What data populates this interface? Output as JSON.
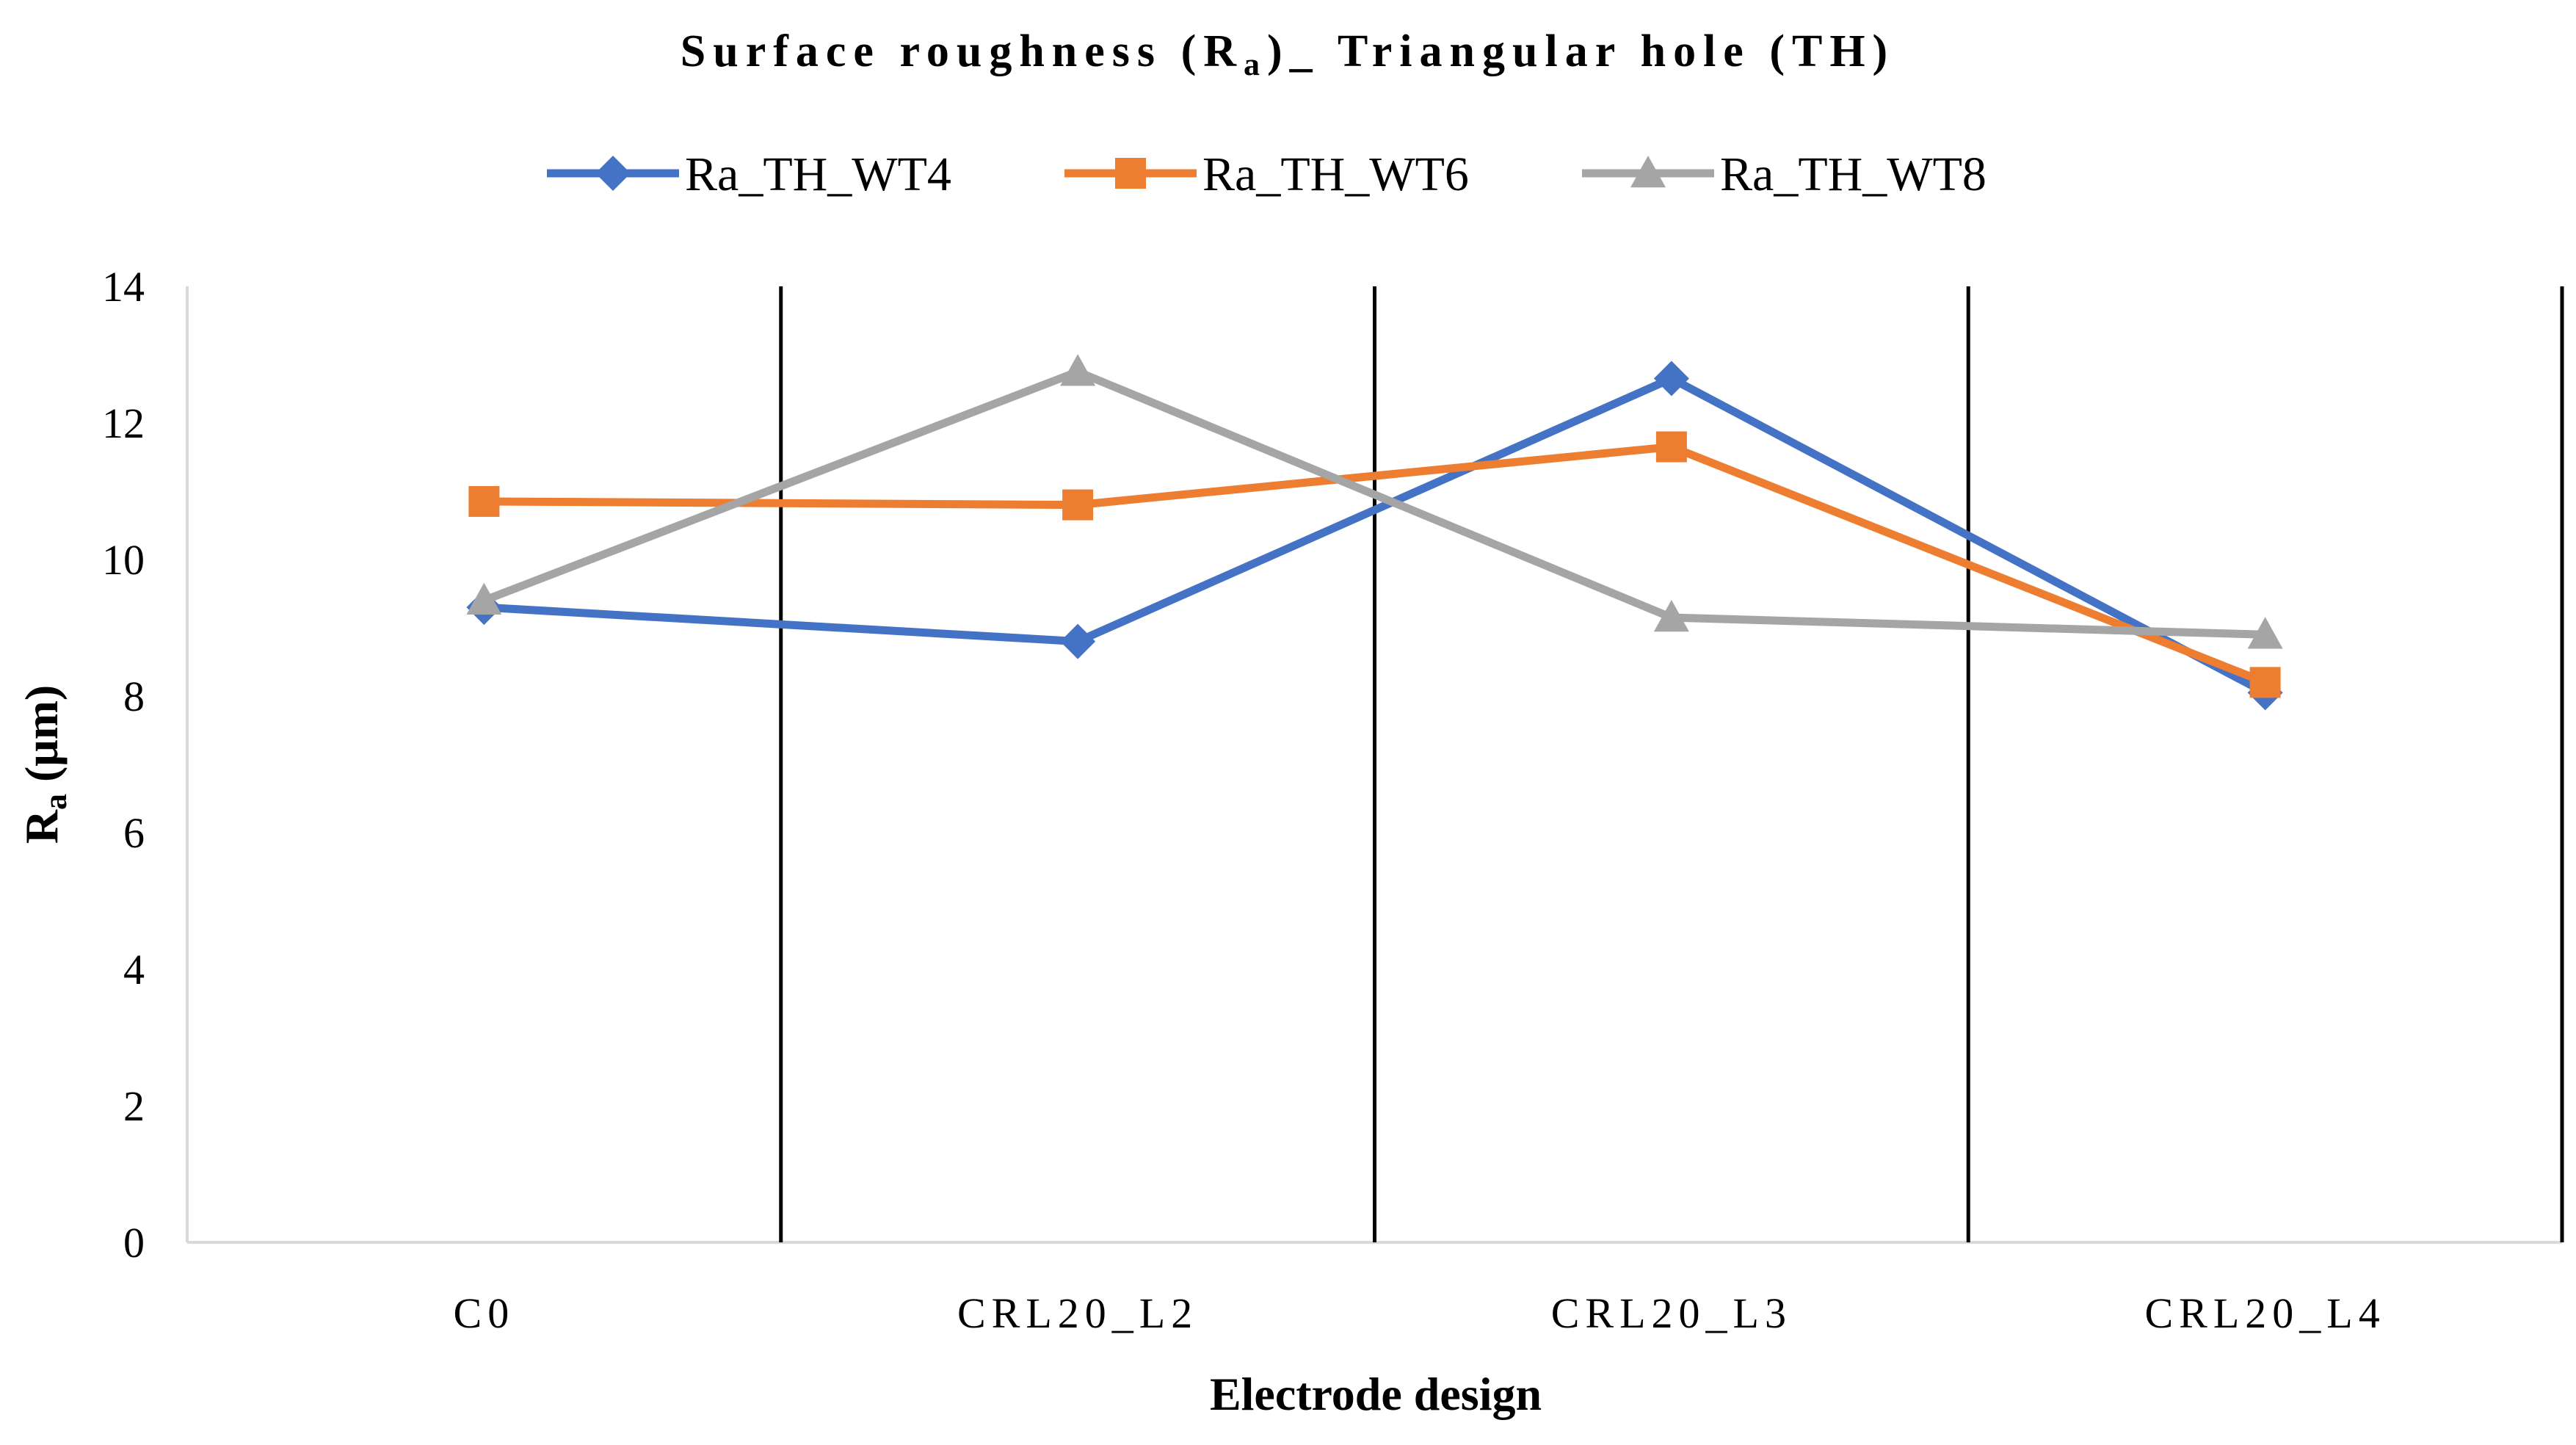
{
  "chart_data": {
    "type": "line",
    "title_main": "Surface roughness (R",
    "title_sub": "a",
    "title_end": ")_ Triangular hole (TH)",
    "xlabel": "Electrode design",
    "ylabel_main": "R",
    "ylabel_sub": "a",
    "ylabel_unit": " (μm)",
    "categories": [
      "C0",
      "CRL20_L2",
      "CRL20_L3",
      "CRL20_L4"
    ],
    "ylim": [
      0,
      14
    ],
    "yticks": [
      0,
      2,
      4,
      6,
      8,
      10,
      12,
      14
    ],
    "legend_position": "top-center",
    "grid": false,
    "series": [
      {
        "name": "Ra_TH_WT4",
        "color": "#4472C4",
        "marker": "diamond",
        "values": [
          9.3,
          8.8,
          12.65,
          8.05
        ]
      },
      {
        "name": "Ra_TH_WT6",
        "color": "#ED7D31",
        "marker": "square",
        "values": [
          10.85,
          10.8,
          11.65,
          8.2
        ]
      },
      {
        "name": "Ra_TH_WT8",
        "color": "#A5A5A5",
        "marker": "triangle",
        "values": [
          9.4,
          12.75,
          9.15,
          8.9
        ]
      }
    ]
  }
}
